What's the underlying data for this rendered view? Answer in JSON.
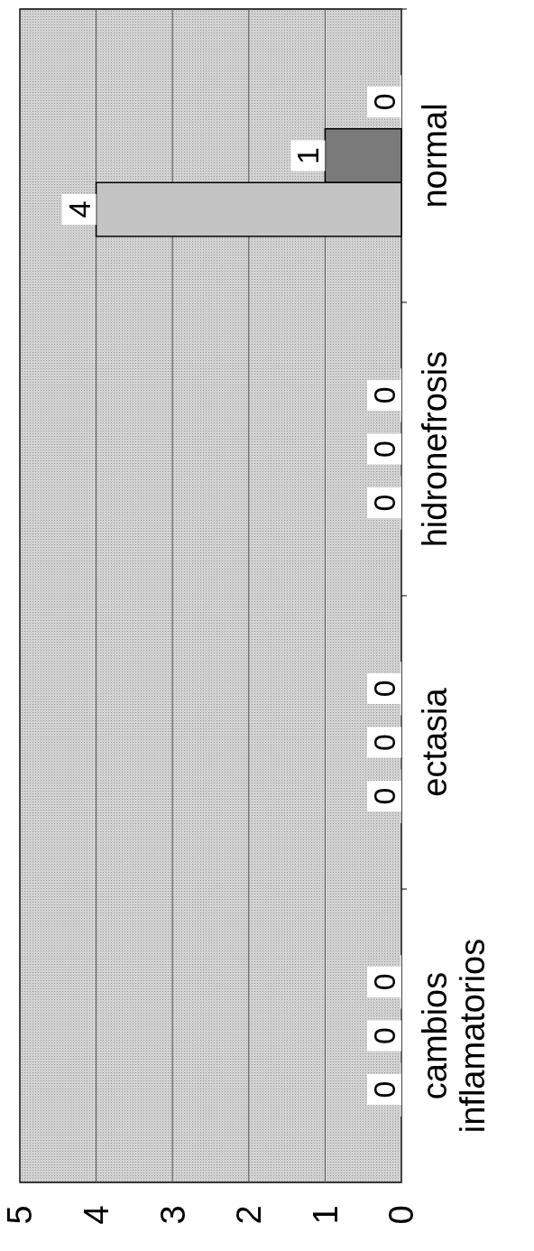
{
  "chart_data": {
    "type": "bar",
    "orientation": "horizontal",
    "categories": [
      "normal",
      "hidronefrosis",
      "ectasia",
      "cambios inflamatorios"
    ],
    "series": [
      {
        "color": "#e8e8e8",
        "values": [
          0,
          0,
          0,
          0
        ]
      },
      {
        "color": "#7a7a7a",
        "values": [
          1,
          0,
          0,
          0
        ]
      },
      {
        "color": "#c4c4c4",
        "values": [
          4,
          0,
          0,
          0
        ]
      }
    ],
    "xlim": [
      5,
      0
    ],
    "xticks": [
      5,
      4,
      3,
      2,
      1,
      0
    ],
    "grid": "x",
    "data_labels": true
  }
}
